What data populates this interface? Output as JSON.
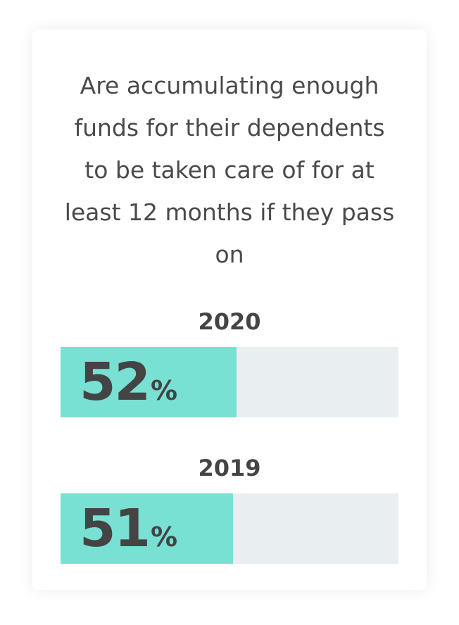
{
  "headline": "Are accumulating enough funds for their dependents to be taken care of for at least 12 months if they pass on",
  "colors": {
    "fill": "#79e0d4",
    "track": "#e9eef1",
    "text": "#444444"
  },
  "chart_data": {
    "type": "bar",
    "orientation": "horizontal",
    "categories": [
      "2020",
      "2019"
    ],
    "values": [
      52,
      51
    ],
    "unit": "%",
    "xlim": [
      0,
      100
    ]
  }
}
